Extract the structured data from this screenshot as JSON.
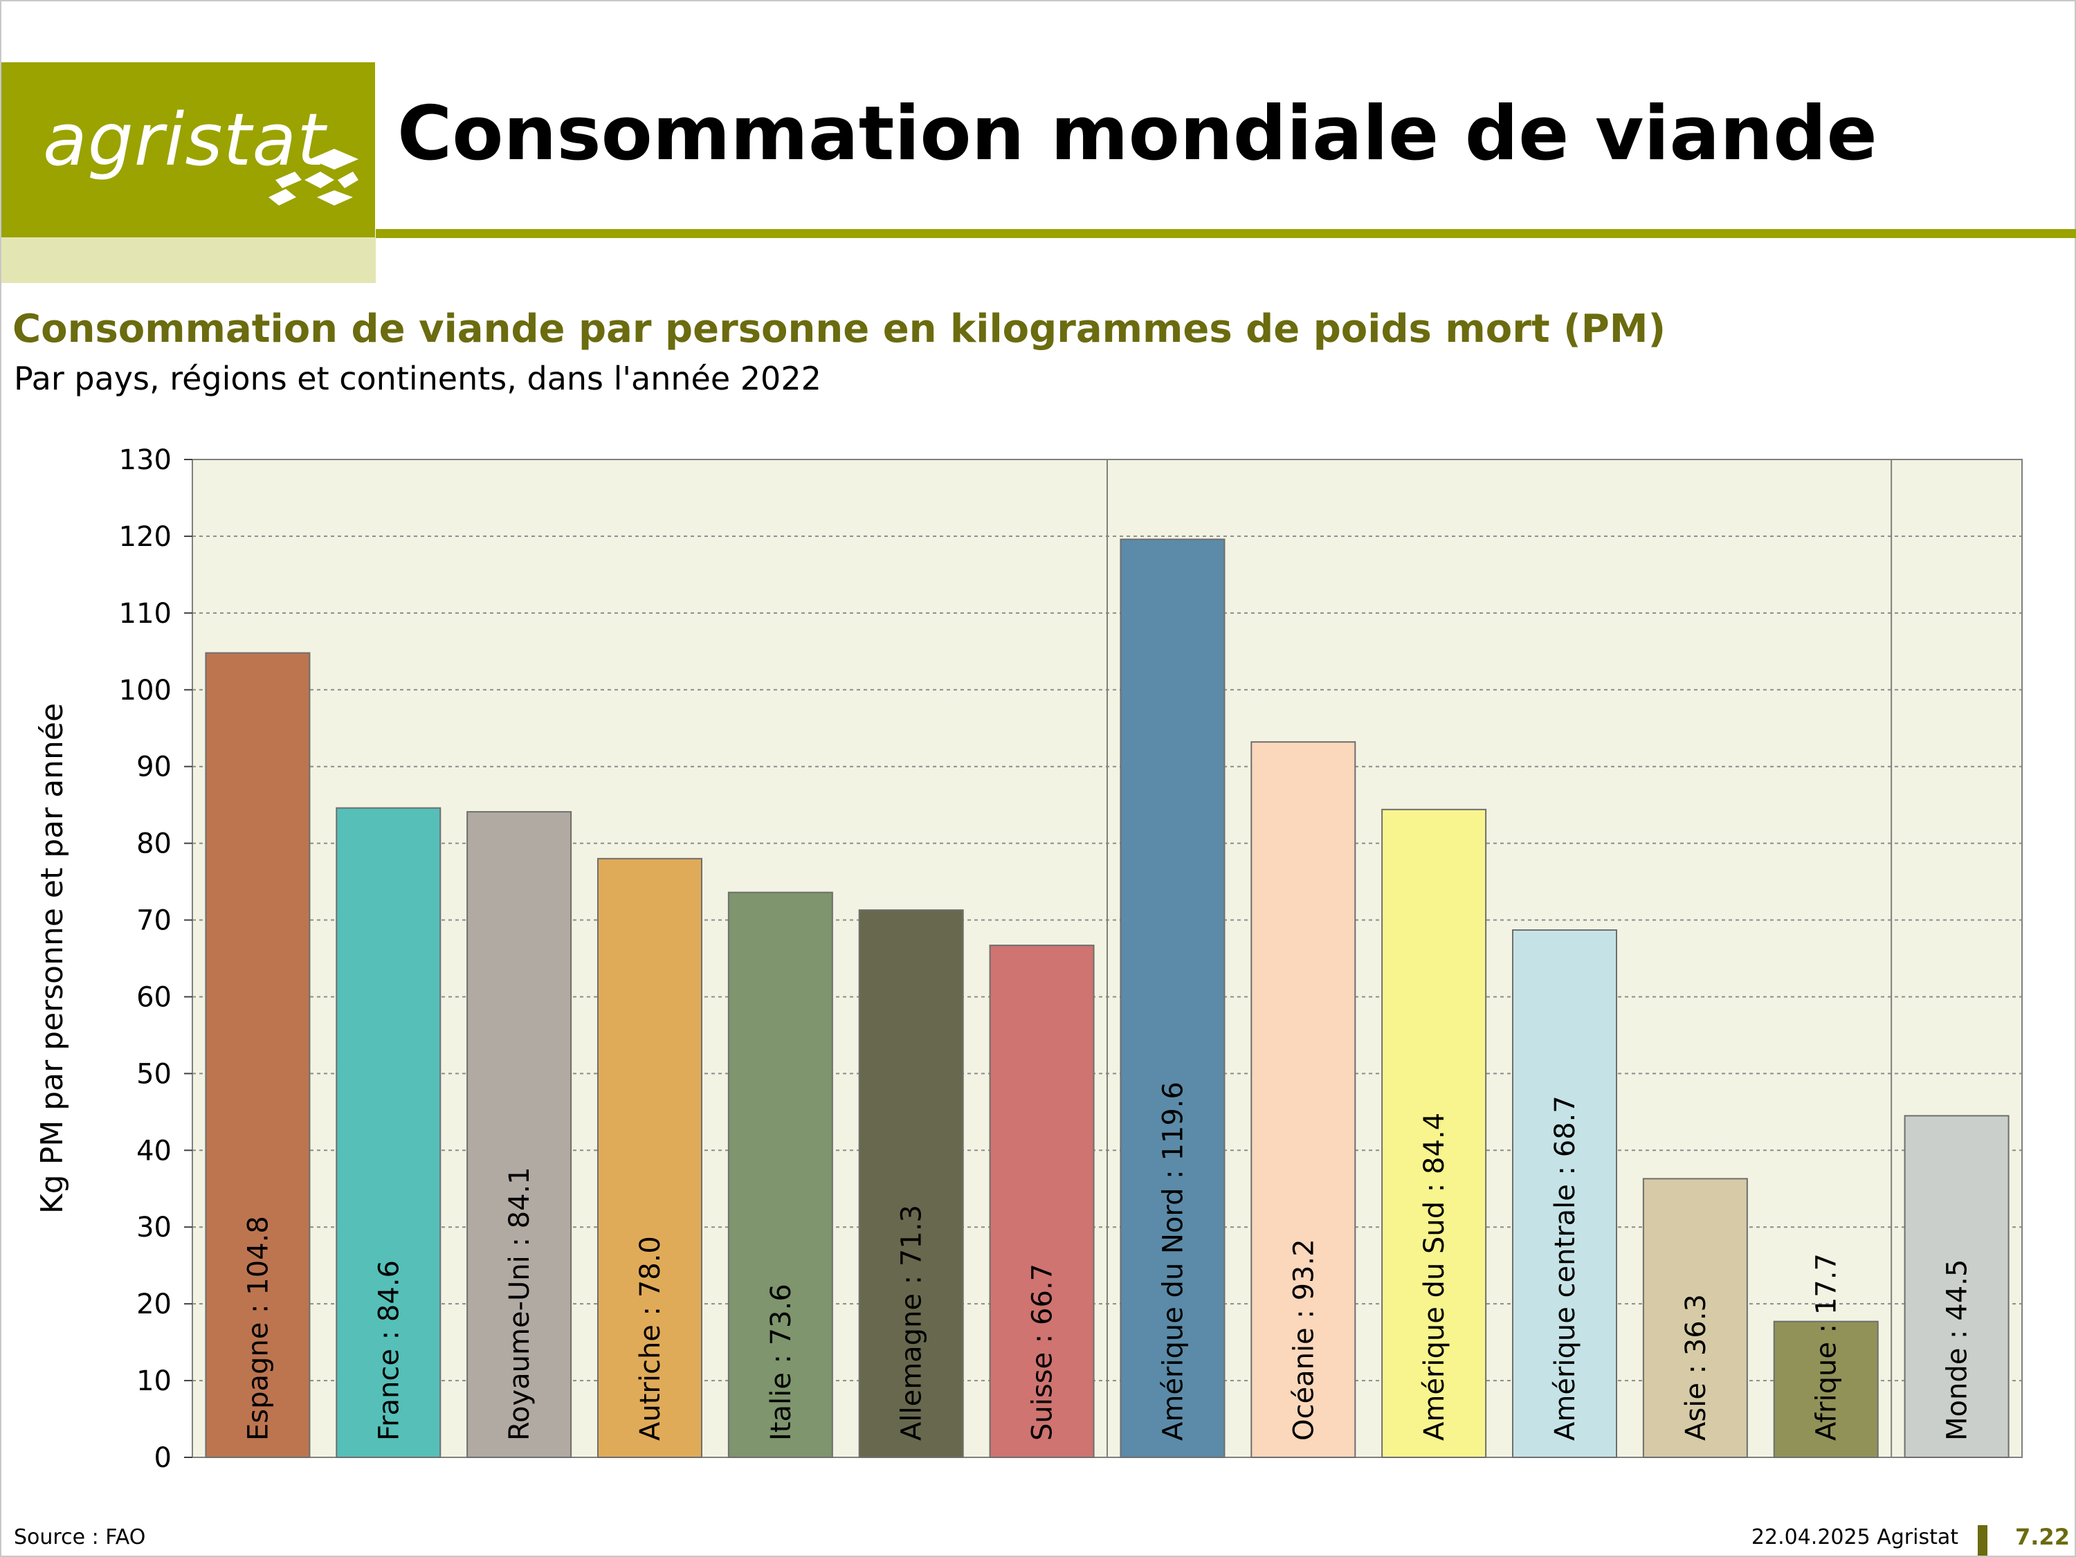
{
  "header": {
    "logo_text": "agristat",
    "title": "Consommation mondiale de viande"
  },
  "colors": {
    "brand": "#9aa300",
    "brand_light": "#e3e6b3",
    "subtitle": "#6b6b0f",
    "plot_bg": "#f3f3e3"
  },
  "chart_data": {
    "type": "bar",
    "title": "Consommation de viande par personne en kilogrammes de poids mort (PM)",
    "subtitle": "Par pays, régions et continents, dans l'année 2022",
    "xlabel": "",
    "ylabel": "Kg PM par personne et par année",
    "ylim": [
      0,
      130
    ],
    "yticks": [
      0,
      10,
      20,
      30,
      40,
      50,
      60,
      70,
      80,
      90,
      100,
      110,
      120,
      130
    ],
    "grid": "horizontal dotted",
    "group_separators_after": [
      "Suisse",
      "Afrique"
    ],
    "bars": [
      {
        "label": "Espagne : 104.8",
        "value": 104.8,
        "color": "#bd7550"
      },
      {
        "label": "France : 84.6",
        "value": 84.6,
        "color": "#55bfb8"
      },
      {
        "label": "Royaume-Uni : 84.1",
        "value": 84.1,
        "color": "#b1aaa3"
      },
      {
        "label": "Autriche : 78.0",
        "value": 78.0,
        "color": "#e0ab58"
      },
      {
        "label": "Italie : 73.6",
        "value": 73.6,
        "color": "#7e956d"
      },
      {
        "label": "Allemagne : 71.3",
        "value": 71.3,
        "color": "#68684e"
      },
      {
        "label": "Suisse : 66.7",
        "value": 66.7,
        "color": "#cf7470"
      },
      {
        "label": "Amérique du Nord : 119.6",
        "value": 119.6,
        "color": "#5b8ba8"
      },
      {
        "label": "Océanie : 93.2",
        "value": 93.2,
        "color": "#fbd7bc"
      },
      {
        "label": "Amérique du Sud : 84.4",
        "value": 84.4,
        "color": "#f8f58e"
      },
      {
        "label": "Amérique centrale : 68.7",
        "value": 68.7,
        "color": "#c5e3e6"
      },
      {
        "label": "Asie : 36.3",
        "value": 36.3,
        "color": "#d6cba6"
      },
      {
        "label": "Afrique : 17.7",
        "value": 17.7,
        "color": "#919258"
      },
      {
        "label": "Monde : 44.5",
        "value": 44.5,
        "color": "#cbcfcc"
      }
    ]
  },
  "footer": {
    "source": "Source : FAO",
    "date": "22.04.2025 Agristat",
    "page": "7.22"
  }
}
